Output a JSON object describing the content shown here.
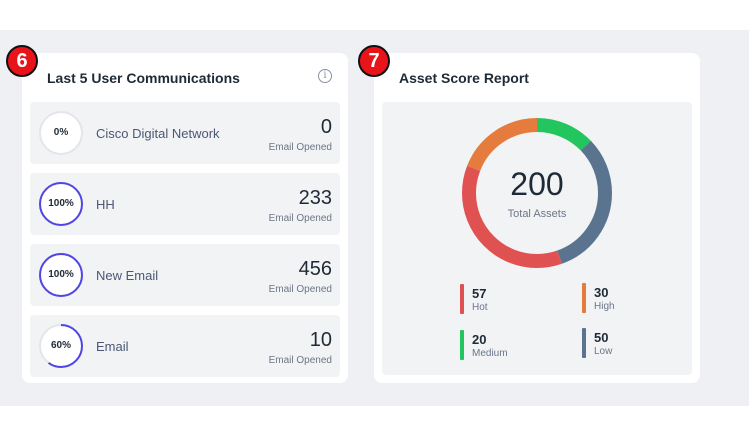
{
  "communications": {
    "title": "Last 5 User Communications",
    "info_icon": "info-circle-icon",
    "badge": "6",
    "items": [
      {
        "percent": "0%",
        "progress": 0,
        "name": "Cisco Digital Network",
        "count": "0",
        "sub": "Email Opened"
      },
      {
        "percent": "100%",
        "progress": 1,
        "name": "HH",
        "count": "233",
        "sub": "Email Opened"
      },
      {
        "percent": "100%",
        "progress": 1,
        "name": "New Email",
        "count": "456",
        "sub": "Email Opened"
      },
      {
        "percent": "60%",
        "progress": 0.6,
        "name": "Email",
        "count": "10",
        "sub": "Email Opened"
      }
    ],
    "ring_color": "#4f46e5",
    "ring_track": "#e3e5ea"
  },
  "asset_score": {
    "title": "Asset Score Report",
    "badge": "7",
    "total": "200",
    "total_label": "Total Assets",
    "legend": [
      {
        "key": "hot",
        "value": "57",
        "label": "Hot",
        "color": "#e05252"
      },
      {
        "key": "high",
        "value": "30",
        "label": "High",
        "color": "#e57b3c"
      },
      {
        "key": "medium",
        "value": "20",
        "label": "Medium",
        "color": "#22c55e"
      },
      {
        "key": "low",
        "value": "50",
        "label": "Low",
        "color": "#5a7490"
      }
    ]
  },
  "chart_data": {
    "type": "pie",
    "categories": [
      "Hot",
      "High",
      "Medium",
      "Low"
    ],
    "values": [
      57,
      30,
      20,
      50
    ],
    "colors": [
      "#e05252",
      "#e57b3c",
      "#22c55e",
      "#5a7490"
    ]
  }
}
